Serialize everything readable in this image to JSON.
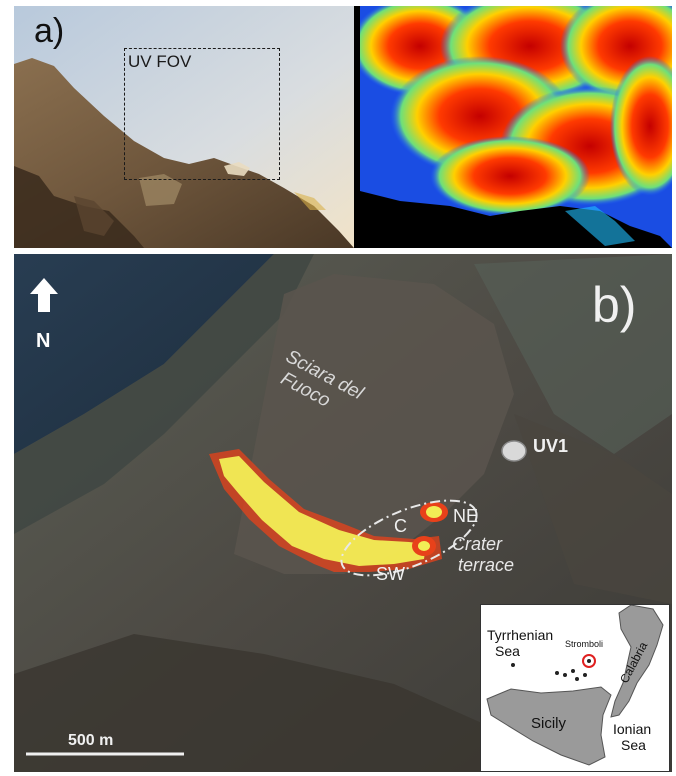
{
  "panel_a": {
    "label": "a)",
    "fov_label": "UV FOV"
  },
  "panel_b": {
    "label": "b)",
    "north_label": "N",
    "region_label_line1": "Sciara del",
    "region_label_line2": "Fuoco",
    "station_label": "UV1",
    "vent_c": "C",
    "vent_ne": "NE",
    "vent_sw": "SW",
    "crater_line1": "Crater",
    "crater_line2": "terrace",
    "scale_label": "500 m"
  },
  "inset": {
    "tyrrhenian_line1": "Tyrrhenian",
    "tyrrhenian_line2": "Sea",
    "stromboli": "Stromboli",
    "calabria": "Calabria",
    "sicily": "Sicily",
    "ionian_line1": "Ionian",
    "ionian_line2": "Sea"
  },
  "colors": {
    "hot_core": "#f2ee55",
    "hot_rim": "#e8411a",
    "station_marker": "#d9d9d9",
    "inset_land": "#9a9a9a",
    "stromboli_marker": "#e02020"
  }
}
